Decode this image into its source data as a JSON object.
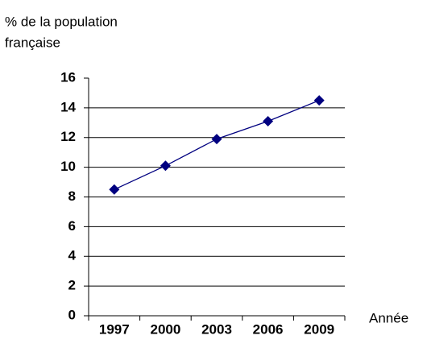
{
  "chart_data": {
    "type": "line",
    "ylabel": [
      "% de la population",
      "française"
    ],
    "xlabel": "Année",
    "categories": [
      "1997",
      "2000",
      "2003",
      "2006",
      "2009"
    ],
    "series": [
      {
        "color": "#000080",
        "values": [
          8.5,
          10.1,
          11.9,
          13.1,
          14.5
        ]
      }
    ],
    "ylim": [
      0,
      16
    ],
    "yticks": [
      0,
      2,
      4,
      6,
      8,
      10,
      12,
      14,
      16
    ],
    "grid": true
  }
}
